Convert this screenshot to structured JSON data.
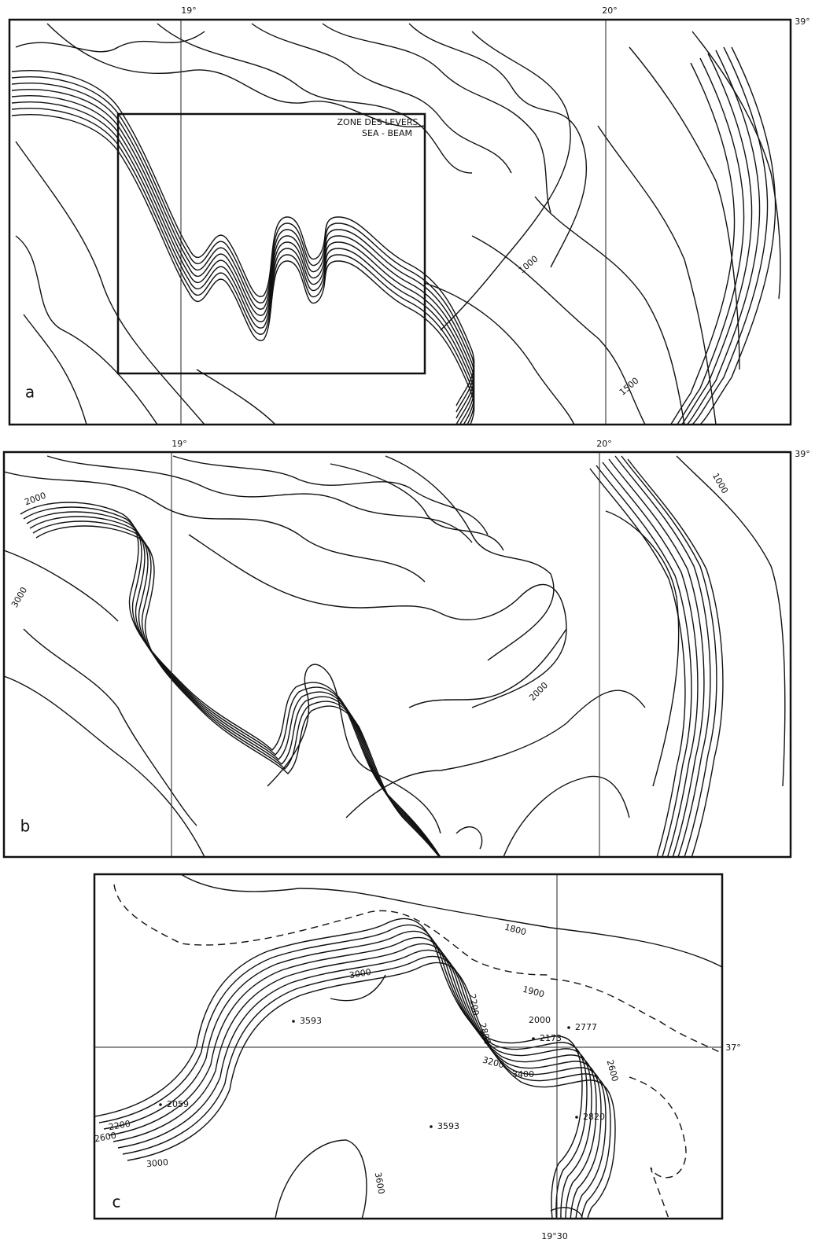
{
  "panels": [
    {
      "label": "a",
      "longitudes": [
        "19°",
        "20°"
      ],
      "latitude": "39°",
      "box_label": [
        "ZONE DES LEVERS",
        "SEA - BEAM"
      ],
      "contour_labels": [
        "1000",
        "1500"
      ]
    },
    {
      "label": "b",
      "longitudes": [
        "19°",
        "20°"
      ],
      "latitude": "39°",
      "contour_labels": [
        "1000",
        "2000",
        "3000",
        "2000"
      ]
    },
    {
      "label": "c",
      "longitude": "19°30",
      "latitude": "37°",
      "contour_labels": [
        "1800",
        "1900",
        "3000",
        "2200",
        "2000",
        "2800",
        "3200",
        "3400",
        "2600",
        "2200",
        "2600",
        "3000",
        "3600"
      ],
      "spot_depths": [
        "2173",
        "2777",
        "3593",
        "2059",
        "3593",
        "2820"
      ]
    }
  ]
}
